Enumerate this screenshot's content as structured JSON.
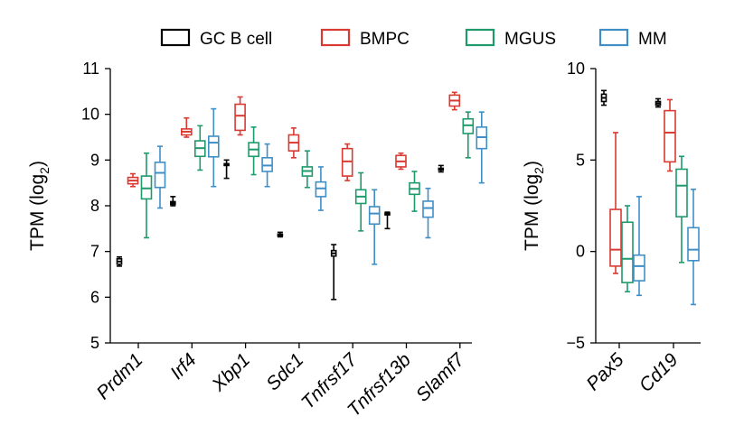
{
  "colors": {
    "GC B cell": "#000000",
    "BMPC": "#d93a32",
    "MGUS": "#1f9a6b",
    "MM": "#3f8fc6"
  },
  "chart_data": [
    {
      "type": "box",
      "panel": "left",
      "ylabel_main": "TPM (log",
      "ylabel_sub": "2",
      "ylabel_close": ")",
      "ylim": [
        5,
        11
      ],
      "yticks": [
        "5",
        "6",
        "7",
        "8",
        "9",
        "10",
        "11"
      ],
      "legend": [
        "GC B cell",
        "BMPC",
        "MGUS",
        "MM"
      ],
      "categories": [
        "Prdm1",
        "Irf4",
        "Xbp1",
        "Sdc1",
        "Tnfrsf17",
        "Tnfrsf13b",
        "Slamf7"
      ],
      "series": [
        {
          "name": "GC B cell",
          "boxes": [
            {
              "min": 6.68,
              "q1": 6.72,
              "median": 6.78,
              "q3": 6.84,
              "max": 6.88
            },
            {
              "min": 8.0,
              "q1": 8.03,
              "median": 8.06,
              "q3": 8.09,
              "max": 8.2
            },
            {
              "min": 8.6,
              "q1": 8.88,
              "median": 8.9,
              "q3": 8.92,
              "max": 9.0
            },
            {
              "min": 7.32,
              "q1": 7.34,
              "median": 7.36,
              "q3": 7.38,
              "max": 7.42
            },
            {
              "min": 5.95,
              "q1": 6.9,
              "median": 6.96,
              "q3": 7.02,
              "max": 7.15
            },
            {
              "min": 7.5,
              "q1": 7.8,
              "median": 7.82,
              "q3": 7.84,
              "max": 7.86
            },
            {
              "min": 8.74,
              "q1": 8.78,
              "median": 8.8,
              "q3": 8.82,
              "max": 8.88
            }
          ]
        },
        {
          "name": "BMPC",
          "boxes": [
            {
              "min": 8.42,
              "q1": 8.48,
              "median": 8.55,
              "q3": 8.62,
              "max": 8.7
            },
            {
              "min": 9.5,
              "q1": 9.55,
              "median": 9.62,
              "q3": 9.68,
              "max": 9.92
            },
            {
              "min": 9.55,
              "q1": 9.65,
              "median": 9.97,
              "q3": 10.22,
              "max": 10.38
            },
            {
              "min": 9.05,
              "q1": 9.2,
              "median": 9.38,
              "q3": 9.55,
              "max": 9.7
            },
            {
              "min": 8.55,
              "q1": 8.65,
              "median": 8.97,
              "q3": 9.25,
              "max": 9.35
            },
            {
              "min": 8.8,
              "q1": 8.85,
              "median": 8.97,
              "q3": 9.1,
              "max": 9.15
            },
            {
              "min": 10.1,
              "q1": 10.18,
              "median": 10.3,
              "q3": 10.42,
              "max": 10.48
            }
          ]
        },
        {
          "name": "MGUS",
          "boxes": [
            {
              "min": 7.3,
              "q1": 8.15,
              "median": 8.38,
              "q3": 8.65,
              "max": 9.15
            },
            {
              "min": 8.78,
              "q1": 9.08,
              "median": 9.26,
              "q3": 9.42,
              "max": 9.75
            },
            {
              "min": 8.68,
              "q1": 9.08,
              "median": 9.23,
              "q3": 9.38,
              "max": 9.72
            },
            {
              "min": 8.4,
              "q1": 8.65,
              "median": 8.76,
              "q3": 8.85,
              "max": 9.2
            },
            {
              "min": 7.45,
              "q1": 8.05,
              "median": 8.2,
              "q3": 8.35,
              "max": 8.72
            },
            {
              "min": 7.88,
              "q1": 8.25,
              "median": 8.37,
              "q3": 8.5,
              "max": 8.75
            },
            {
              "min": 9.05,
              "q1": 9.58,
              "median": 9.76,
              "q3": 9.9,
              "max": 10.05
            }
          ]
        },
        {
          "name": "MM",
          "boxes": [
            {
              "min": 7.95,
              "q1": 8.4,
              "median": 8.72,
              "q3": 8.95,
              "max": 9.3
            },
            {
              "min": 8.42,
              "q1": 9.07,
              "median": 9.38,
              "q3": 9.52,
              "max": 10.12
            },
            {
              "min": 8.42,
              "q1": 8.75,
              "median": 8.88,
              "q3": 9.05,
              "max": 9.35
            },
            {
              "min": 7.9,
              "q1": 8.2,
              "median": 8.38,
              "q3": 8.52,
              "max": 8.85
            },
            {
              "min": 6.72,
              "q1": 7.6,
              "median": 7.83,
              "q3": 7.98,
              "max": 8.35
            },
            {
              "min": 7.3,
              "q1": 7.75,
              "median": 7.95,
              "q3": 8.1,
              "max": 8.38
            },
            {
              "min": 8.5,
              "q1": 9.25,
              "median": 9.5,
              "q3": 9.72,
              "max": 10.05
            }
          ]
        }
      ]
    },
    {
      "type": "box",
      "panel": "right",
      "ylabel_main": "TPM (log",
      "ylabel_sub": "2",
      "ylabel_close": ")",
      "ylim": [
        -5,
        10
      ],
      "yticks": [
        "−5",
        "0",
        "5",
        "10"
      ],
      "categories": [
        "Pax5",
        "Cd19"
      ],
      "series": [
        {
          "name": "GC B cell",
          "boxes": [
            {
              "min": 8.0,
              "q1": 8.2,
              "median": 8.4,
              "q3": 8.6,
              "max": 8.8
            },
            {
              "min": 7.9,
              "q1": 8.0,
              "median": 8.1,
              "q3": 8.2,
              "max": 8.35
            }
          ]
        },
        {
          "name": "BMPC",
          "boxes": [
            {
              "min": -1.2,
              "q1": -0.8,
              "median": 0.1,
              "q3": 2.3,
              "max": 6.5
            },
            {
              "min": 4.4,
              "q1": 4.9,
              "median": 6.5,
              "q3": 7.7,
              "max": 8.3
            }
          ]
        },
        {
          "name": "MGUS",
          "boxes": [
            {
              "min": -2.2,
              "q1": -1.7,
              "median": -0.4,
              "q3": 1.6,
              "max": 2.5
            },
            {
              "min": -0.6,
              "q1": 1.9,
              "median": 3.6,
              "q3": 4.5,
              "max": 5.2
            }
          ]
        },
        {
          "name": "MM",
          "boxes": [
            {
              "min": -2.4,
              "q1": -1.6,
              "median": -0.8,
              "q3": -0.2,
              "max": 3.0
            },
            {
              "min": -2.9,
              "q1": -0.5,
              "median": 0.1,
              "q3": 1.3,
              "max": 3.4
            }
          ]
        }
      ]
    }
  ]
}
